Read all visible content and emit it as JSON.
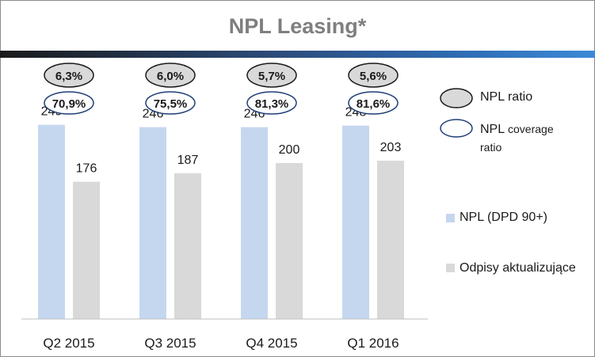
{
  "chart_data": {
    "type": "bar",
    "title": "NPL Leasing*",
    "categories": [
      "Q2 2015",
      "Q3 2015",
      "Q4 2015",
      "Q1 2016"
    ],
    "series": [
      {
        "name": "NPL (DPD 90+)",
        "values": [
          249,
          246,
          246,
          248
        ],
        "color": "#c5d7ef"
      },
      {
        "name": "Odpisy aktualizujące",
        "values": [
          176,
          187,
          200,
          203
        ],
        "color": "#d9d9d9"
      }
    ],
    "ylim": [
      0,
      270
    ],
    "grid": false,
    "npl_ratio": {
      "name": "NPL ratio",
      "labels": [
        "6,3%",
        "6,0%",
        "5,7%",
        "5,6%"
      ],
      "color": "#d9d9d9"
    },
    "npl_coverage_ratio": {
      "name": "NPL coverage ratio",
      "name_main": "NPL",
      "name_rest": " coverage ratio",
      "labels": [
        "70,9%",
        "75,5%",
        "81,3%",
        "81,6%"
      ],
      "color": "#1f3f78"
    },
    "legend_position": "right"
  }
}
